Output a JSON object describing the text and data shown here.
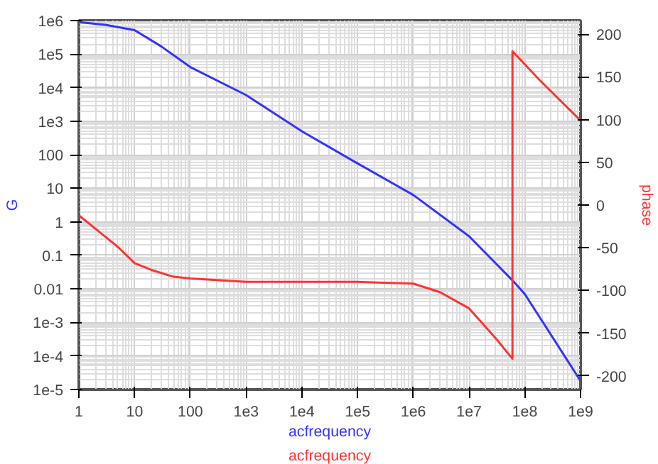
{
  "chart_data": {
    "type": "line",
    "xlabel": "acfrequency",
    "ylabel": "G",
    "y2label": "phase",
    "annotations": [
      "acfrequency"
    ],
    "log": "xy",
    "grid": true,
    "marker": "none",
    "line_style": "solid",
    "xlim": [
      1,
      1000000000
    ],
    "xticks": [
      1,
      10,
      100,
      {
        "value": 1000,
        "label": "1e3"
      },
      {
        "value": 10000,
        "label": "1e4"
      },
      {
        "value": 100000,
        "label": "1e5"
      },
      {
        "value": 1000000,
        "label": "1e6"
      },
      {
        "value": 10000000,
        "label": "1e7"
      },
      {
        "value": 100000000,
        "label": "1e8"
      },
      {
        "value": 1000000000,
        "label": "1e9"
      }
    ],
    "ylim": [
      1e-05,
      1000000
    ],
    "yticks": [
      {
        "value": 1e-05,
        "label": "1e-5"
      },
      {
        "value": 0.0001,
        "label": "1e-4"
      },
      {
        "value": 0.001,
        "label": "1e-3"
      },
      0.01,
      0.1,
      1,
      10,
      100,
      {
        "value": 1000,
        "label": "1e3"
      },
      {
        "value": 10000,
        "label": "1e4"
      },
      {
        "value": 100000,
        "label": "1e5"
      },
      {
        "value": 1000000,
        "label": "1e6"
      }
    ],
    "y2lim": [
      -216,
      216
    ],
    "y2ticks": [
      -200,
      -150,
      -100,
      -50,
      0,
      50,
      100,
      150,
      200
    ],
    "series": [
      {
        "color": "#3333ff",
        "x": [
          1,
          3,
          10,
          30,
          100,
          1000,
          10000,
          100000,
          1000000,
          10000000,
          60000000,
          100000000,
          1000000000
        ],
        "values": [
          900000,
          750000,
          520000,
          170000,
          41000,
          6000,
          500,
          55,
          6.3,
          0.37,
          0.018,
          0.007,
          1.8e-05
        ]
      },
      {
        "color": "#ff3333",
        "axis": "y2",
        "x": [
          1,
          2,
          5,
          10,
          20,
          50,
          100,
          1000,
          100000,
          1000000,
          3000000,
          10000000,
          30000000,
          60000000,
          60000000,
          200000000,
          1000000000
        ],
        "values": [
          -12,
          -28,
          -49,
          -68,
          -76,
          -84,
          -86,
          -90,
          -90,
          -92,
          -102,
          -121,
          -156,
          -180,
          180,
          144,
          99
        ]
      }
    ]
  }
}
